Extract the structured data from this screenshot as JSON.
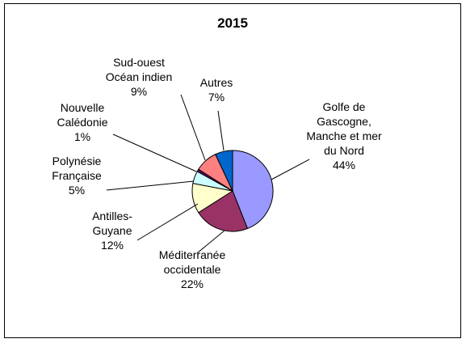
{
  "chart_data": {
    "type": "pie",
    "title": "2015",
    "slices": [
      {
        "label_lines": [
          "Golfe de",
          "Gascogne,",
          "Manche et mer",
          "du Nord"
        ],
        "pct_label": "44%",
        "value": 44,
        "color": "#9999ff"
      },
      {
        "label_lines": [
          "Méditerranée",
          "occidentale"
        ],
        "pct_label": "22%",
        "value": 22,
        "color": "#993366"
      },
      {
        "label_lines": [
          "Antilles-",
          "Guyane"
        ],
        "pct_label": "12%",
        "value": 12,
        "color": "#ffffcc"
      },
      {
        "label_lines": [
          "Polynésie",
          "Française"
        ],
        "pct_label": "5%",
        "value": 5,
        "color": "#ccffff"
      },
      {
        "label_lines": [
          "Nouvelle",
          "Calédonie"
        ],
        "pct_label": "1%",
        "value": 1,
        "color": "#660066"
      },
      {
        "label_lines": [
          "Sud-ouest",
          "Océan indien"
        ],
        "pct_label": "9%",
        "value": 9,
        "color": "#ff8080"
      },
      {
        "label_lines": [
          "Autres"
        ],
        "pct_label": "7%",
        "value": 7,
        "color": "#0066cc"
      }
    ]
  }
}
